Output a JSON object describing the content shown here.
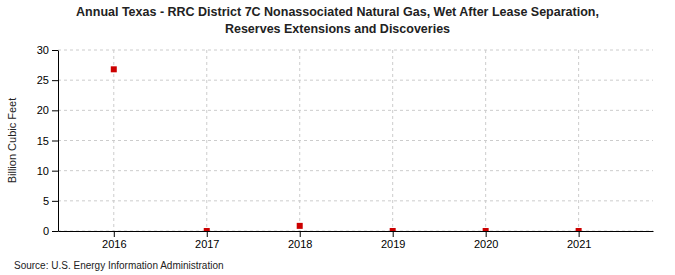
{
  "chart_data": {
    "type": "scatter",
    "title": "Annual Texas - RRC District 7C Nonassociated Natural Gas, Wet After Lease Separation,",
    "subtitle": "Reserves Extensions and Discoveries",
    "y_label": "Billion Cubic Feet",
    "annotations": [
      "Source: U.S. Energy Information Administration"
    ],
    "x": [
      2016,
      2017,
      2018,
      2019,
      2020,
      2021
    ],
    "values": [
      26.8,
      0.0,
      0.85,
      0.0,
      0.0,
      0.0
    ],
    "color": "#cc0000",
    "marker": "square",
    "xlim": [
      2015.4,
      2021.8
    ],
    "xticks": [
      2016,
      2017,
      2018,
      2019,
      2020,
      2021
    ],
    "ylim": [
      0,
      30
    ],
    "yticks": [
      0,
      5,
      10,
      15,
      20,
      25,
      30
    ],
    "grid": true
  }
}
